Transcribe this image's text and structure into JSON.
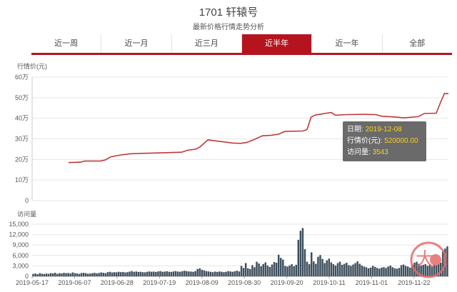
{
  "header": {
    "title": "1701 轩辕号",
    "subtitle": "最新价格行情走势分析"
  },
  "tabs": [
    {
      "label": "近一周",
      "active": false
    },
    {
      "label": "近一月",
      "active": false
    },
    {
      "label": "近三月",
      "active": false
    },
    {
      "label": "近半年",
      "active": true
    },
    {
      "label": "近一年",
      "active": false
    },
    {
      "label": "全部",
      "active": false
    }
  ],
  "tooltip": {
    "date_label": "日期:",
    "date": "2019-12-08",
    "price_label": "行情价(元):",
    "price": "520000.00",
    "visits_label": "访问量:",
    "visits": "3543"
  },
  "watermark": {
    "text": "大",
    "icon": "seal-watermark-icon"
  },
  "colors": {
    "accent": "#b5141f",
    "line": "#c0393b",
    "bar": "#3d4e5c",
    "highlight": "#ffd21c"
  },
  "chart_data": [
    {
      "type": "line",
      "ylabel": "行情价(元)",
      "yticks": [
        "0",
        "10万",
        "20万",
        "30万",
        "40万",
        "50万",
        "60万"
      ],
      "ylim": [
        0,
        600000
      ],
      "x_range": [
        "2019-05-17",
        "2019-12-09"
      ],
      "grid": true,
      "series": [
        {
          "points": [
            [
              "2019-06-04",
              185000
            ],
            [
              "2019-06-10",
              187000
            ],
            [
              "2019-06-12",
              192000
            ],
            [
              "2019-06-20",
              193000
            ],
            [
              "2019-06-22",
              197000
            ],
            [
              "2019-06-25",
              213000
            ],
            [
              "2019-06-30",
              222000
            ],
            [
              "2019-07-05",
              228000
            ],
            [
              "2019-07-12",
              230000
            ],
            [
              "2019-07-20",
              232000
            ],
            [
              "2019-07-30",
              235000
            ],
            [
              "2019-08-02",
              245000
            ],
            [
              "2019-08-06",
              250000
            ],
            [
              "2019-08-08",
              260000
            ],
            [
              "2019-08-12",
              295000
            ],
            [
              "2019-08-16",
              290000
            ],
            [
              "2019-08-20",
              285000
            ],
            [
              "2019-08-24",
              280000
            ],
            [
              "2019-08-28",
              278000
            ],
            [
              "2019-08-31",
              282000
            ],
            [
              "2019-09-03",
              293000
            ],
            [
              "2019-09-08",
              315000
            ],
            [
              "2019-09-12",
              317000
            ],
            [
              "2019-09-16",
              323000
            ],
            [
              "2019-09-19",
              336000
            ],
            [
              "2019-09-28",
              338000
            ],
            [
              "2019-09-30",
              345000
            ],
            [
              "2019-10-02",
              405000
            ],
            [
              "2019-10-04",
              415000
            ],
            [
              "2019-10-08",
              422000
            ],
            [
              "2019-10-12",
              428000
            ],
            [
              "2019-10-14",
              415000
            ],
            [
              "2019-10-20",
              418000
            ],
            [
              "2019-10-28",
              419000
            ],
            [
              "2019-11-03",
              418000
            ],
            [
              "2019-11-06",
              410000
            ],
            [
              "2019-11-10",
              408000
            ],
            [
              "2019-11-14",
              405000
            ],
            [
              "2019-11-17",
              402000
            ],
            [
              "2019-11-24",
              408000
            ],
            [
              "2019-11-27",
              423000
            ],
            [
              "2019-12-03",
              425000
            ],
            [
              "2019-12-05",
              475000
            ],
            [
              "2019-12-07",
              520000
            ],
            [
              "2019-12-09",
              520000
            ]
          ]
        }
      ]
    },
    {
      "type": "bar",
      "ylabel": "访问量",
      "yticks": [
        "0",
        "3,000",
        "6,000",
        "9,000",
        "12,000",
        "15,000"
      ],
      "ylim": [
        0,
        15000
      ],
      "xticks": [
        "2019-05-17",
        "2019-06-07",
        "2019-06-28",
        "2019-07-19",
        "2019-08-09",
        "2019-08-30",
        "2019-09-20",
        "2019-10-11",
        "2019-11-01",
        "2019-11-22"
      ],
      "x_range": [
        "2019-05-17",
        "2019-12-09"
      ],
      "series": [
        {
          "values": [
            700,
            800,
            600,
            900,
            750,
            650,
            800,
            700,
            900,
            850,
            1000,
            700,
            900,
            800,
            1000,
            900,
            950,
            800,
            1100,
            900,
            850,
            700,
            950,
            1000,
            900,
            750,
            800,
            900,
            1000,
            850,
            950,
            1100,
            1000,
            900,
            1200,
            1300,
            1100,
            1200,
            1150,
            1300,
            1200,
            1250,
            1100,
            1200,
            1350,
            1500,
            1300,
            1400,
            1250,
            1300,
            1200,
            1150,
            1300,
            1400,
            1300,
            1350,
            1250,
            1400,
            1500,
            1300,
            1350,
            1450,
            1300,
            1250,
            1400,
            1500,
            1350,
            1300,
            1450,
            1600,
            1500,
            1400,
            1350,
            1300,
            1500,
            2100,
            2300,
            1900,
            1700,
            1500,
            1400,
            1300,
            1200,
            1350,
            1250,
            1400,
            1300,
            1200,
            1300,
            1500,
            1400,
            1300,
            1450,
            1600,
            1400,
            3000,
            2400,
            3800,
            2300,
            2100,
            3200,
            2600,
            4200,
            3700,
            2900,
            3500,
            4000,
            3100,
            2700,
            3400,
            4100,
            3900,
            6200,
            5300,
            4800,
            3000,
            2800,
            3100,
            3500,
            2900,
            3300,
            10500,
            13100,
            13900,
            7800,
            4200,
            3500,
            6900,
            4300,
            3600,
            5600,
            6100,
            5000,
            3800,
            4600,
            5100,
            4000,
            3500,
            3100,
            3800,
            4200,
            3300,
            3600,
            3900,
            3200,
            3000,
            3400,
            3800,
            4300,
            3600,
            3100,
            2800,
            2600,
            2300,
            2500,
            3000,
            2700,
            2400,
            2200,
            2500,
            2600,
            2400,
            2800,
            3100,
            2600,
            2300,
            2200,
            2400,
            3200,
            3400,
            3000,
            2800,
            2500,
            3300,
            3900,
            4200,
            3600,
            3100,
            3300,
            3500,
            3000,
            3400,
            2800,
            3300,
            3100,
            3600,
            3900,
            7200,
            8000,
            8600
          ]
        }
      ]
    }
  ]
}
